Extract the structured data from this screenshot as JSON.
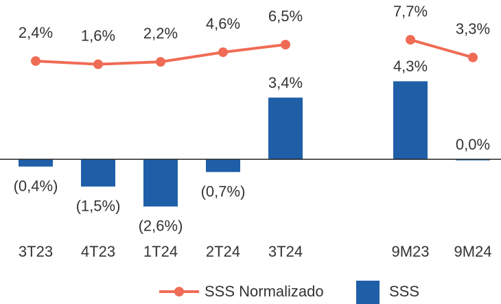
{
  "chart_data": {
    "type": "bar-line",
    "categories": [
      "3T23",
      "4T23",
      "1T24",
      "2T24",
      "3T24",
      null,
      "9M23",
      "9M24"
    ],
    "series": [
      {
        "name": "SSS",
        "type": "bar",
        "color": "#1f5fa8",
        "axis": "y",
        "values": [
          -0.4,
          -1.5,
          -2.6,
          -0.7,
          3.4,
          null,
          4.3,
          0.0
        ],
        "value_labels": [
          "(0,4%)",
          "(1,5%)",
          "(2,6%)",
          "(0,7%)",
          "3,4%",
          null,
          "4,3%",
          "0,0%"
        ]
      },
      {
        "name": "SSS Normalizado",
        "type": "line",
        "color": "#f06b55",
        "axis": "y2",
        "values": [
          2.4,
          1.6,
          2.2,
          4.6,
          6.5,
          null,
          7.7,
          3.3
        ],
        "value_labels": [
          "2,4%",
          "1,6%",
          "2,2%",
          "4,6%",
          "6,5%",
          null,
          "7,7%",
          "3,3%"
        ]
      }
    ],
    "ylim": [
      -3.7,
      8.4
    ],
    "y2lim": [
      -38.8,
      15.9
    ]
  }
}
